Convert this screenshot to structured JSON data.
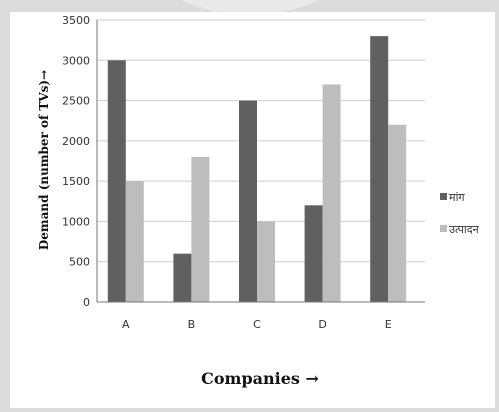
{
  "chart_data": {
    "type": "bar",
    "categories": [
      "A",
      "B",
      "C",
      "D",
      "E"
    ],
    "series": [
      {
        "name": "मांग",
        "values": [
          3000,
          600,
          2500,
          1200,
          3300
        ],
        "color": "#606060"
      },
      {
        "name": "उत्पादन",
        "values": [
          1500,
          1800,
          1000,
          2700,
          2200
        ],
        "color": "#bdbdbd"
      }
    ],
    "xlabel": "Companies →",
    "ylabel": "Demand (number of TVs)→",
    "ylim": [
      0,
      3500
    ],
    "yticks": [
      0,
      500,
      1000,
      1500,
      2000,
      2500,
      3000,
      3500
    ],
    "grid": true,
    "legend_position": "right"
  },
  "colors": {
    "background": "#dcdcdc",
    "plot_panel": "#ffffff",
    "grid": "#cfcfcf"
  }
}
